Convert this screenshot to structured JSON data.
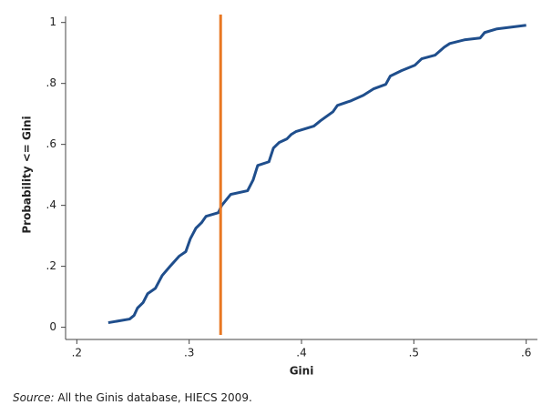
{
  "chart_data": {
    "type": "line",
    "xlabel": "Gini",
    "ylabel": "Probability <= Gini",
    "x": [
      0.228,
      0.247,
      0.251,
      0.254,
      0.259,
      0.263,
      0.27,
      0.276,
      0.283,
      0.291,
      0.297,
      0.301,
      0.306,
      0.311,
      0.315,
      0.326,
      0.329,
      0.337,
      0.352,
      0.357,
      0.361,
      0.371,
      0.375,
      0.38,
      0.387,
      0.391,
      0.395,
      0.411,
      0.417,
      0.428,
      0.432,
      0.444,
      0.455,
      0.464,
      0.475,
      0.479,
      0.489,
      0.501,
      0.507,
      0.519,
      0.527,
      0.532,
      0.545,
      0.559,
      0.563,
      0.574,
      0.6
    ],
    "values": [
      0.015,
      0.027,
      0.039,
      0.063,
      0.081,
      0.11,
      0.128,
      0.17,
      0.2,
      0.233,
      0.248,
      0.29,
      0.325,
      0.343,
      0.364,
      0.376,
      0.4,
      0.436,
      0.448,
      0.484,
      0.531,
      0.543,
      0.588,
      0.606,
      0.618,
      0.633,
      0.642,
      0.66,
      0.678,
      0.707,
      0.728,
      0.743,
      0.761,
      0.782,
      0.797,
      0.824,
      0.842,
      0.86,
      0.881,
      0.893,
      0.919,
      0.931,
      0.943,
      0.949,
      0.967,
      0.979,
      0.991
    ],
    "color": "#1f4e8c",
    "reference_line": {
      "x": 0.328,
      "color": "#e87722"
    },
    "xlim": [
      0.19,
      0.61
    ],
    "xticks": [
      {
        "value": 0.2,
        "label": ".2"
      },
      {
        "value": 0.3,
        "label": ".3"
      },
      {
        "value": 0.4,
        "label": ".4"
      },
      {
        "value": 0.5,
        "label": ".5"
      },
      {
        "value": 0.6,
        "label": ".6"
      }
    ],
    "ylim": [
      -0.04,
      1.02
    ],
    "yticks": [
      0,
      {
        "value": 0.2,
        "label": ".2"
      },
      {
        "value": 0.4,
        "label": ".4"
      },
      {
        "value": 0.6,
        "label": ".6"
      },
      {
        "value": 0.8,
        "label": ".8"
      },
      1
    ],
    "source_label": "Source:",
    "source_text": "All the Ginis database, HIECS 2009."
  }
}
